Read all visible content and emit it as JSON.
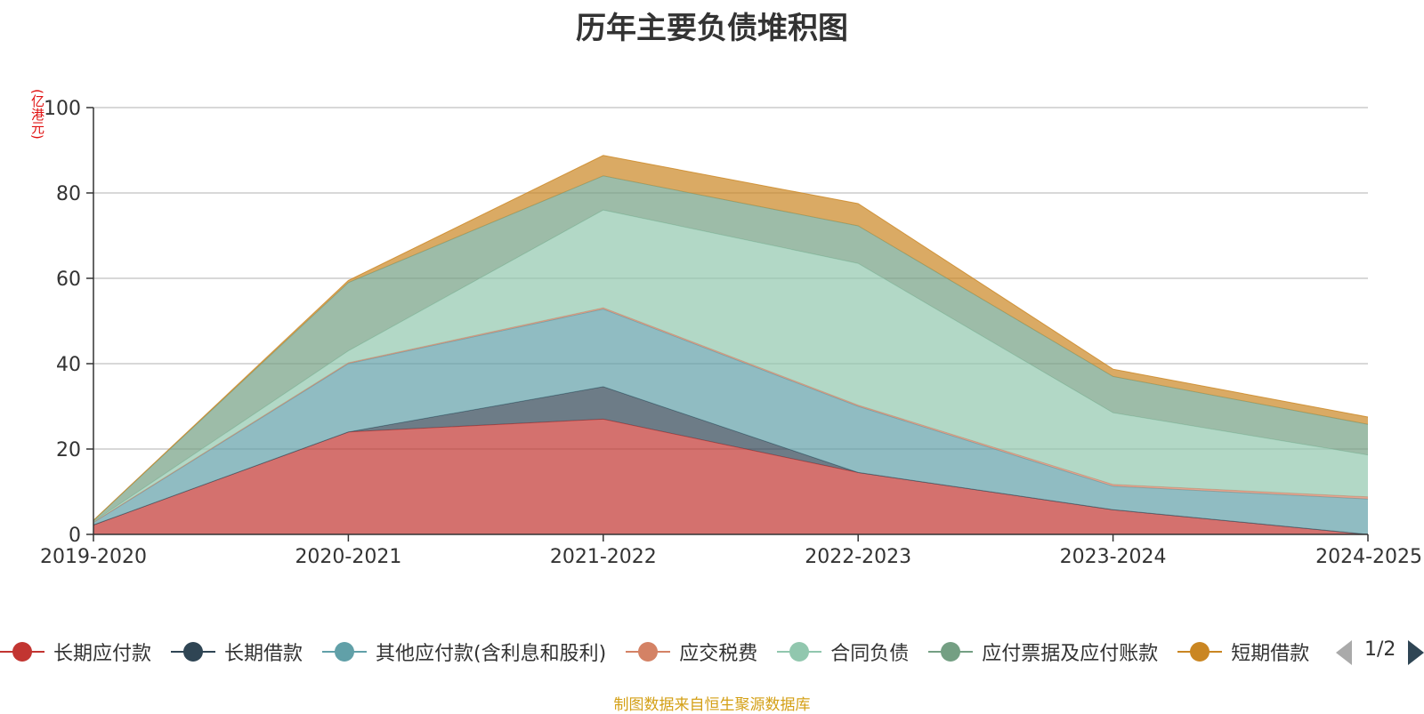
{
  "chart_data": {
    "type": "area",
    "stacked": true,
    "title": "历年主要负债堆积图",
    "ylabel": "(亿港元)",
    "xlabel": "",
    "categories": [
      "2019-2020",
      "2020-2021",
      "2021-2022",
      "2022-2023",
      "2023-2024",
      "2024-2025"
    ],
    "ylim": [
      0,
      100
    ],
    "yticks": [
      0,
      20,
      40,
      60,
      80,
      100
    ],
    "grid": true,
    "legend_position": "bottom",
    "series": [
      {
        "name": "长期应付款",
        "color": "#c23531",
        "values": [
          2.2,
          24.0,
          27.0,
          14.5,
          5.8,
          0.0
        ]
      },
      {
        "name": "长期借款",
        "color": "#2f4554",
        "values": [
          0.0,
          0.0,
          7.6,
          0.0,
          0.0,
          0.0
        ]
      },
      {
        "name": "其他应付款(含利息和股利)",
        "color": "#61a0a8",
        "values": [
          0.6,
          16.0,
          18.2,
          15.5,
          5.5,
          8.3
        ]
      },
      {
        "name": "应交税费",
        "color": "#d48265",
        "values": [
          0.05,
          0.2,
          0.3,
          0.3,
          0.4,
          0.5
        ]
      },
      {
        "name": "合同负债",
        "color": "#91c7ae",
        "values": [
          0.15,
          2.8,
          22.9,
          33.2,
          16.8,
          9.8
        ]
      },
      {
        "name": "应付票据及应付账款",
        "color": "#749f83",
        "values": [
          0.3,
          16.0,
          8.0,
          8.8,
          8.5,
          7.2
        ]
      },
      {
        "name": "短期借款",
        "color": "#ca8622",
        "values": [
          0.0,
          0.5,
          4.8,
          5.2,
          1.7,
          1.7
        ]
      }
    ]
  },
  "legend": {
    "items": [
      {
        "label": "长期应付款",
        "color": "#c23531"
      },
      {
        "label": "长期借款",
        "color": "#2f4554"
      },
      {
        "label": "其他应付款(含利息和股利)",
        "color": "#61a0a8"
      },
      {
        "label": "应交税费",
        "color": "#d48265"
      },
      {
        "label": "合同负债",
        "color": "#91c7ae"
      },
      {
        "label": "应付票据及应付账款",
        "color": "#749f83"
      },
      {
        "label": "短期借款",
        "color": "#ca8622"
      }
    ],
    "page_text": "1/2"
  },
  "source_note": "制图数据来自恒生聚源数据库"
}
